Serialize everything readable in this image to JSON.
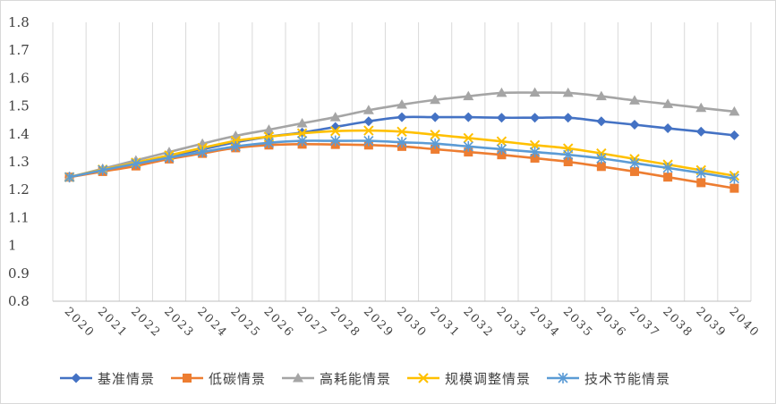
{
  "chart_data": {
    "type": "line",
    "title": "",
    "xlabel": "",
    "ylabel": "",
    "ylim": [
      0.8,
      1.8
    ],
    "ytick_labels": [
      "0.8",
      "0.9",
      "1",
      "1.1",
      "1.2",
      "1.3",
      "1.4",
      "1.5",
      "1.6",
      "1.7",
      "1.8"
    ],
    "categories": [
      "2020",
      "2021",
      "2022",
      "2023",
      "2024",
      "2025",
      "2026",
      "2027",
      "2028",
      "2029",
      "2030",
      "2031",
      "2032",
      "2033",
      "2034",
      "2035",
      "2036",
      "2037",
      "2038",
      "2039",
      "2040"
    ],
    "grid": "vertical",
    "legend_position": "bottom",
    "series": [
      {
        "name": "基准情景",
        "color": "#4472C4",
        "marker": "diamond",
        "values": [
          1.245,
          1.27,
          1.295,
          1.32,
          1.345,
          1.37,
          1.39,
          1.405,
          1.425,
          1.445,
          1.46,
          1.46,
          1.46,
          1.458,
          1.458,
          1.458,
          1.445,
          1.433,
          1.42,
          1.408,
          1.395
        ]
      },
      {
        "name": "低碳情景",
        "color": "#ED7D31",
        "marker": "square",
        "values": [
          1.245,
          1.265,
          1.285,
          1.31,
          1.33,
          1.35,
          1.36,
          1.363,
          1.362,
          1.36,
          1.355,
          1.345,
          1.335,
          1.325,
          1.313,
          1.3,
          1.283,
          1.265,
          1.245,
          1.225,
          1.205
        ]
      },
      {
        "name": "高耗能情景",
        "color": "#A5A5A5",
        "marker": "triangle",
        "values": [
          1.245,
          1.275,
          1.305,
          1.335,
          1.365,
          1.393,
          1.415,
          1.438,
          1.46,
          1.485,
          1.505,
          1.522,
          1.535,
          1.547,
          1.548,
          1.547,
          1.535,
          1.52,
          1.507,
          1.493,
          1.48
        ]
      },
      {
        "name": "规模调整情景",
        "color": "#FFC000",
        "marker": "x",
        "values": [
          1.245,
          1.272,
          1.297,
          1.323,
          1.35,
          1.375,
          1.39,
          1.402,
          1.41,
          1.412,
          1.408,
          1.397,
          1.385,
          1.373,
          1.36,
          1.348,
          1.33,
          1.31,
          1.29,
          1.27,
          1.25
        ]
      },
      {
        "name": "技术节能情景",
        "color": "#5B9BD5",
        "marker": "star",
        "values": [
          1.245,
          1.27,
          1.293,
          1.315,
          1.335,
          1.355,
          1.368,
          1.375,
          1.375,
          1.375,
          1.37,
          1.365,
          1.355,
          1.345,
          1.335,
          1.325,
          1.312,
          1.295,
          1.278,
          1.26,
          1.24
        ]
      }
    ]
  }
}
